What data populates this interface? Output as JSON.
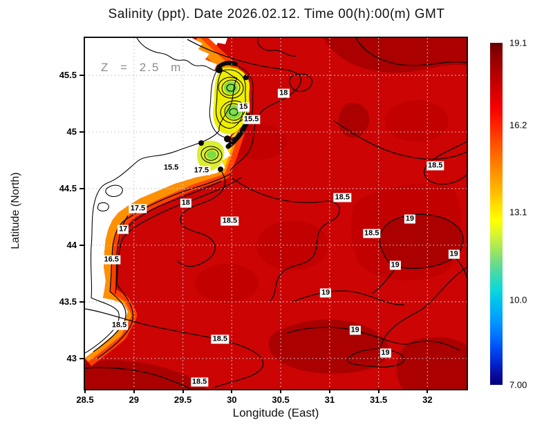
{
  "title": "Salinity (ppt). Date 2026.02.12. Time 00(h):00(m) GMT",
  "annotation": "Z = 2.5 m",
  "axes": {
    "x": {
      "label": "Longitude (East)"
    },
    "y": {
      "label": "Latitude (North)"
    }
  },
  "chart_data": {
    "type": "heatmap",
    "title": "Salinity (ppt). Date 2026.02.12. Time 00(h):00(m) GMT",
    "variable": "Salinity (ppt)",
    "date": "2026.02.12",
    "time": "00(h):00(m) GMT",
    "depth_annotation": "Z = 2.5 m",
    "xlabel": "Longitude (East)",
    "ylabel": "Latitude (North)",
    "xlim": [
      28.5,
      32.4
    ],
    "ylim": [
      42.73,
      45.83
    ],
    "x_ticks": [
      28.5,
      29,
      29.5,
      30,
      30.5,
      31,
      31.5,
      32
    ],
    "y_ticks": [
      43,
      43.5,
      44,
      44.5,
      45,
      45.5
    ],
    "grid": true,
    "legend_position": "right-colorbar",
    "colorbar": {
      "min": 7.0,
      "max": 19.1,
      "tick_values": [
        19.1,
        16.2,
        13.1,
        10.0,
        7.0
      ],
      "tick_labels": [
        "19.1",
        "16.2",
        "13.1",
        "10.0",
        "7.00"
      ]
    },
    "contour_labels": [
      {
        "value": "18",
        "lon": 30.53,
        "lat": 45.34
      },
      {
        "value": "15",
        "lon": 30.12,
        "lat": 45.22
      },
      {
        "value": "15.5",
        "lon": 30.2,
        "lat": 45.11
      },
      {
        "value": "15.5",
        "lon": 29.38,
        "lat": 44.68
      },
      {
        "value": "17.5",
        "lon": 29.69,
        "lat": 44.66
      },
      {
        "value": "18",
        "lon": 29.53,
        "lat": 44.37
      },
      {
        "value": "18.5",
        "lon": 29.98,
        "lat": 44.21
      },
      {
        "value": "17.5",
        "lon": 29.04,
        "lat": 44.32
      },
      {
        "value": "17",
        "lon": 28.89,
        "lat": 44.14
      },
      {
        "value": "16.5",
        "lon": 28.77,
        "lat": 43.87
      },
      {
        "value": "18.5",
        "lon": 28.85,
        "lat": 43.29
      },
      {
        "value": "18.5",
        "lon": 32.08,
        "lat": 44.7
      },
      {
        "value": "18.5",
        "lon": 31.13,
        "lat": 44.42
      },
      {
        "value": "18.5",
        "lon": 31.43,
        "lat": 44.1
      },
      {
        "value": "19",
        "lon": 31.82,
        "lat": 44.23
      },
      {
        "value": "19",
        "lon": 32.27,
        "lat": 43.92
      },
      {
        "value": "19",
        "lon": 31.67,
        "lat": 43.82
      },
      {
        "value": "19",
        "lon": 30.96,
        "lat": 43.58
      },
      {
        "value": "19",
        "lon": 31.26,
        "lat": 43.25
      },
      {
        "value": "19",
        "lon": 31.57,
        "lat": 43.05
      },
      {
        "value": "18.5",
        "lon": 29.88,
        "lat": 43.17
      },
      {
        "value": "18.5",
        "lon": 29.67,
        "lat": 42.79
      }
    ]
  },
  "colors": {
    "sea": "#CC0404",
    "sea_mid": "#C20000",
    "sea_dark": "#AB0000",
    "land": "#FFFFFF",
    "coast_band_outer": "#FF4000",
    "coast_band_inner": "#FF9000",
    "coast_band_yellow": "#FFD900",
    "plume_yellow": "#EFF000",
    "plume_yellow2": "#DCEE30",
    "plume_green": "#7CDE46",
    "contour": "#0A0A0A",
    "grid": "#C9C9C9",
    "annotation_gray": "#8A8A8A"
  },
  "colorbar_gradient": [
    {
      "p": "0%",
      "c": "#650000"
    },
    {
      "p": "3%",
      "c": "#8B0000"
    },
    {
      "p": "7%",
      "c": "#A50000"
    },
    {
      "p": "11%",
      "c": "#C00000"
    },
    {
      "p": "15%",
      "c": "#DC0000"
    },
    {
      "p": "19%",
      "c": "#F50000"
    },
    {
      "p": "24%",
      "c": "#FF2200"
    },
    {
      "p": "29%",
      "c": "#FF4C00"
    },
    {
      "p": "34%",
      "c": "#FF7300"
    },
    {
      "p": "39%",
      "c": "#FF9900"
    },
    {
      "p": "44%",
      "c": "#FFBF00"
    },
    {
      "p": "48%",
      "c": "#FFE200"
    },
    {
      "p": "52%",
      "c": "#FFFF00"
    },
    {
      "p": "56%",
      "c": "#D8F531"
    },
    {
      "p": "60%",
      "c": "#A8E858"
    },
    {
      "p": "64%",
      "c": "#72DC85"
    },
    {
      "p": "68%",
      "c": "#3CD9B0"
    },
    {
      "p": "72%",
      "c": "#0ED9D9"
    },
    {
      "p": "76%",
      "c": "#00BFF0"
    },
    {
      "p": "81%",
      "c": "#009CFF"
    },
    {
      "p": "86%",
      "c": "#0070FF"
    },
    {
      "p": "90%",
      "c": "#0046F0"
    },
    {
      "p": "94%",
      "c": "#0023CC"
    },
    {
      "p": "97%",
      "c": "#0B0B9B"
    },
    {
      "p": "100%",
      "c": "#000080"
    }
  ]
}
